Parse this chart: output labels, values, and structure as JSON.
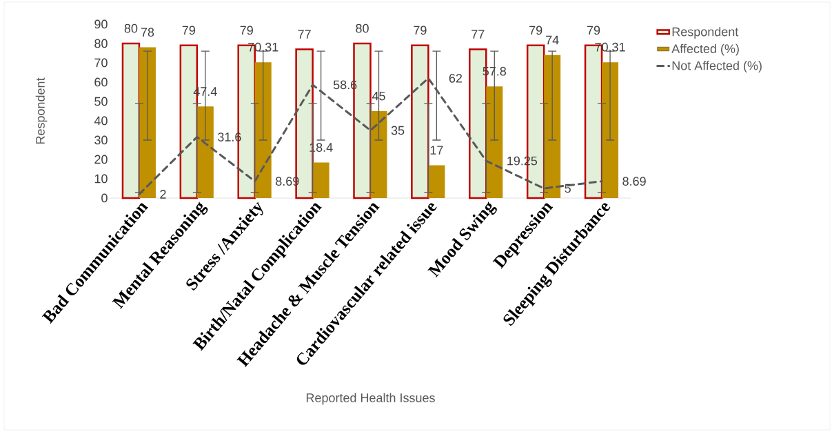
{
  "chart_data": {
    "type": "bar",
    "categories": [
      "Bad Communication",
      "Mental Reasoning",
      "Stress /Anxiety",
      "Birth/Natal Complication",
      "Headache & Muscle Tension",
      "Cardiovascular related issue",
      "Mood Swing",
      "Depression",
      "Sleeping Disturbance"
    ],
    "series": [
      {
        "name": "Respondent",
        "color": "#e2f0d9",
        "values": [
          80,
          79,
          79,
          77,
          80,
          79,
          77,
          79,
          79
        ]
      },
      {
        "name": "Affected (%)",
        "color": "#bf9000",
        "values": [
          78,
          47.4,
          70.31,
          18.4,
          45,
          17,
          57.8,
          74,
          70.31
        ],
        "errors": [
          [
            30,
            76
          ],
          [
            30,
            76
          ],
          [
            30,
            76
          ],
          [
            30,
            76
          ],
          [
            30,
            76
          ],
          [
            30,
            76
          ],
          [
            30,
            76
          ],
          [
            30,
            76
          ],
          [
            30,
            76
          ]
        ]
      },
      {
        "name": "Not Affected (%)",
        "type": "line",
        "color": "#595959",
        "line_style": "dashed",
        "values": [
          2,
          31.6,
          8.69,
          58.6,
          35,
          62,
          19.25,
          5,
          8.69
        ],
        "errors": [
          [
            3,
            49
          ],
          [
            3,
            49
          ],
          [
            3,
            49
          ],
          [
            3,
            49
          ],
          [
            3,
            49
          ],
          [
            3,
            49
          ],
          [
            3,
            49
          ],
          [
            3,
            49
          ],
          [
            3,
            49
          ]
        ]
      }
    ],
    "ylim": [
      0,
      90
    ],
    "yticks": [
      0,
      10,
      20,
      30,
      40,
      50,
      60,
      70,
      80,
      90
    ],
    "xlabel": "Reported Health Issues",
    "ylabel": "Respondent",
    "legend": "top right",
    "data_labels": true
  }
}
